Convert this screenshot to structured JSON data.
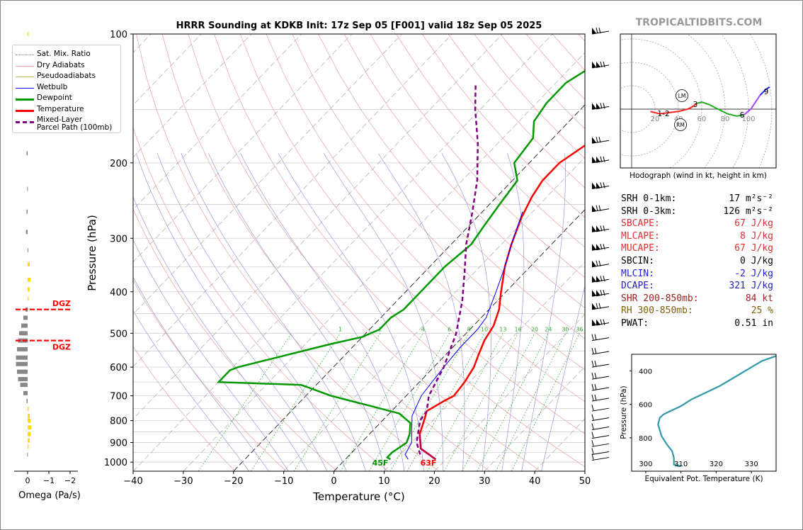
{
  "title": "HRRR Sounding at KDKB Init: 17z Sep 05 [F001] valid 18z Sep 05 2025",
  "watermark": "TROPICALTIDBITS.COM",
  "chart_data": [
    {
      "type": "line",
      "name": "skew-t",
      "xlabel": "Temperature (°C)",
      "ylabel": "Pressure (hPa)",
      "xlim": [
        -40,
        50
      ],
      "ylim": [
        1050,
        100
      ],
      "yscale": "log",
      "x_ticks": [
        "−40",
        "−30",
        "−20",
        "−10",
        "0",
        "10",
        "20",
        "30",
        "40",
        "50"
      ],
      "y_ticks": [
        "100",
        "200",
        "300",
        "400",
        "500",
        "600",
        "700",
        "800",
        "900",
        "1000"
      ],
      "mixing_ratio_labels": [
        "1",
        "2",
        "4",
        "6",
        "8",
        "10",
        "13",
        "16",
        "20",
        "24",
        "30",
        "36"
      ],
      "surface_labels": {
        "dewpoint": "45F",
        "temperature": "63F"
      },
      "legend": [
        {
          "label": "Sat. Mix. Ratio",
          "color": "#8c8c8c",
          "style": "dotted"
        },
        {
          "label": "Dry Adiabats",
          "color": "#e6a0a0",
          "style": "solid"
        },
        {
          "label": "Pseudoadiabats",
          "color": "#b8b868",
          "style": "solid"
        },
        {
          "label": "Wetbulb",
          "color": "#0000ff",
          "style": "solid"
        },
        {
          "label": "Dewpoint",
          "color": "#009900",
          "style": "solid"
        },
        {
          "label": "Temperature",
          "color": "#ff0000",
          "style": "solid"
        },
        {
          "label": "Mixed-Layer\nParcel Path (100mb)",
          "color": "#800080",
          "style": "dashed"
        }
      ],
      "series": [
        {
          "name": "Temperature",
          "points": [
            [
              18,
              985
            ],
            [
              13,
              930
            ],
            [
              10,
              860
            ],
            [
              8,
              790
            ],
            [
              7,
              760
            ],
            [
              8.5,
              720
            ],
            [
              9.5,
              700
            ],
            [
              9,
              650
            ],
            [
              8,
              600
            ],
            [
              6.5,
              560
            ],
            [
              5,
              520
            ],
            [
              4,
              480
            ],
            [
              2,
              440
            ],
            [
              -1,
              400
            ],
            [
              -5,
              350
            ],
            [
              -8,
              310
            ],
            [
              -11,
              270
            ],
            [
              -13,
              240
            ],
            [
              -14,
              220
            ],
            [
              -14,
              200
            ],
            [
              -12,
              180
            ],
            [
              -9,
              160
            ],
            [
              -5,
              140
            ],
            [
              -3,
              130
            ],
            [
              -2,
              115
            ],
            [
              0,
              105
            ],
            [
              3,
              100
            ]
          ]
        },
        {
          "name": "Dewpoint",
          "points": [
            [
              9,
              985
            ],
            [
              8,
              975
            ],
            [
              8,
              950
            ],
            [
              9,
              900
            ],
            [
              8,
              860
            ],
            [
              6,
              810
            ],
            [
              2,
              770
            ],
            [
              -5,
              740
            ],
            [
              -15,
              700
            ],
            [
              -23,
              660
            ],
            [
              -40,
              650
            ],
            [
              -40,
              610
            ],
            [
              -39,
              600
            ],
            [
              -25,
              530
            ],
            [
              -20,
              510
            ],
            [
              -18,
              490
            ],
            [
              -18,
              460
            ],
            [
              -17,
              440
            ],
            [
              -17,
              410
            ],
            [
              -17,
              380
            ],
            [
              -17,
              350
            ],
            [
              -16,
              310
            ],
            [
              -17,
              280
            ],
            [
              -18,
              250
            ],
            [
              -19,
              220
            ],
            [
              -23,
              200
            ],
            [
              -24,
              175
            ],
            [
              -27,
              160
            ],
            [
              -28,
              145
            ],
            [
              -28,
              130
            ],
            [
              -24,
              110
            ],
            [
              -19,
              100
            ]
          ]
        },
        {
          "name": "Wetbulb",
          "points": [
            [
              12.5,
              985
            ],
            [
              11,
              960
            ],
            [
              10,
              900
            ],
            [
              8,
              850
            ],
            [
              5,
              780
            ],
            [
              3,
              700
            ],
            [
              2.5,
              650
            ],
            [
              2,
              600
            ],
            [
              1.5,
              540
            ],
            [
              1.5,
              490
            ],
            [
              1,
              460
            ],
            [
              -2,
              400
            ],
            [
              -5,
              350
            ],
            [
              -8,
              310
            ],
            [
              -12,
              260
            ]
          ]
        },
        {
          "name": "Mixed-Layer Parcel Path (100mb)",
          "points": [
            [
              14,
              960
            ],
            [
              11,
              900
            ],
            [
              7.5,
              800
            ],
            [
              7,
              760
            ],
            [
              4.5,
              700
            ],
            [
              2,
              600
            ],
            [
              -2,
              500
            ],
            [
              -7,
              420
            ],
            [
              -12,
              360
            ],
            [
              -17,
              310
            ],
            [
              -22,
              260
            ],
            [
              -27,
              220
            ],
            [
              -34,
              180
            ],
            [
              -41,
              150
            ],
            [
              -46,
              130
            ]
          ]
        }
      ]
    },
    {
      "type": "line",
      "name": "hodograph",
      "xlabel": "Hodograph (wind in kt, height in km)",
      "ring_labels": [
        "20",
        "40",
        "60",
        "80",
        "100"
      ],
      "height_labels": [
        "1-2",
        "3",
        "6",
        "9"
      ],
      "markers": [
        "LM",
        "RM"
      ]
    },
    {
      "type": "line",
      "name": "theta-e",
      "xlabel": "Equivalent Pot. Temperature (K)",
      "ylabel": "Pressure (hPa)",
      "x_ticks": [
        "300",
        "310",
        "320",
        "330"
      ],
      "y_ticks": [
        "400",
        "600",
        "800"
      ],
      "xlim": [
        296,
        337
      ],
      "ylim": [
        1000,
        300
      ],
      "points": [
        [
          309,
          970
        ],
        [
          310,
          970
        ],
        [
          308,
          960
        ],
        [
          308,
          920
        ],
        [
          307.5,
          880
        ],
        [
          306,
          840
        ],
        [
          304.5,
          790
        ],
        [
          303.5,
          720
        ],
        [
          304,
          680
        ],
        [
          305,
          660
        ],
        [
          307,
          640
        ],
        [
          310,
          610
        ],
        [
          313,
          570
        ],
        [
          317,
          530
        ],
        [
          321,
          490
        ],
        [
          325,
          440
        ],
        [
          329,
          390
        ],
        [
          333,
          340
        ],
        [
          337,
          310
        ]
      ]
    },
    {
      "type": "bar",
      "name": "omega",
      "xlabel": "Omega (Pa/s)",
      "x_ticks": [
        "0",
        "−1",
        "−2"
      ],
      "dgz_label": "DGZ"
    }
  ],
  "stats": [
    {
      "label": "SRH 0-1km:",
      "value": "17",
      "unit": "m²s⁻²",
      "color": "#000000"
    },
    {
      "label": "SRH 0-3km:",
      "value": "126",
      "unit": "m²s⁻²",
      "color": "#000000"
    },
    {
      "label": "SBCAPE:",
      "value": "67 J/kg",
      "unit": "",
      "color": "#e03030"
    },
    {
      "label": "MLCAPE:",
      "value": "8 J/kg",
      "unit": "",
      "color": "#e03030"
    },
    {
      "label": "MUCAPE:",
      "value": "67 J/kg",
      "unit": "",
      "color": "#e03030"
    },
    {
      "label": "SBCIN:",
      "value": "0 J/kg",
      "unit": "",
      "color": "#000000"
    },
    {
      "label": "MLCIN:",
      "value": "-2 J/kg",
      "unit": "",
      "color": "#2020e0"
    },
    {
      "label": "DCAPE:",
      "value": "321 J/kg",
      "unit": "",
      "color": "#2020c0"
    },
    {
      "label": "SHR 200-850mb:",
      "value": "84 kt",
      "unit": "",
      "color": "#a02020"
    },
    {
      "label": "RH 300-850mb:",
      "value": "25 %",
      "unit": "",
      "color": "#806010"
    },
    {
      "label": "PWAT:",
      "value": "0.51 in",
      "unit": "",
      "color": "#000000"
    }
  ]
}
